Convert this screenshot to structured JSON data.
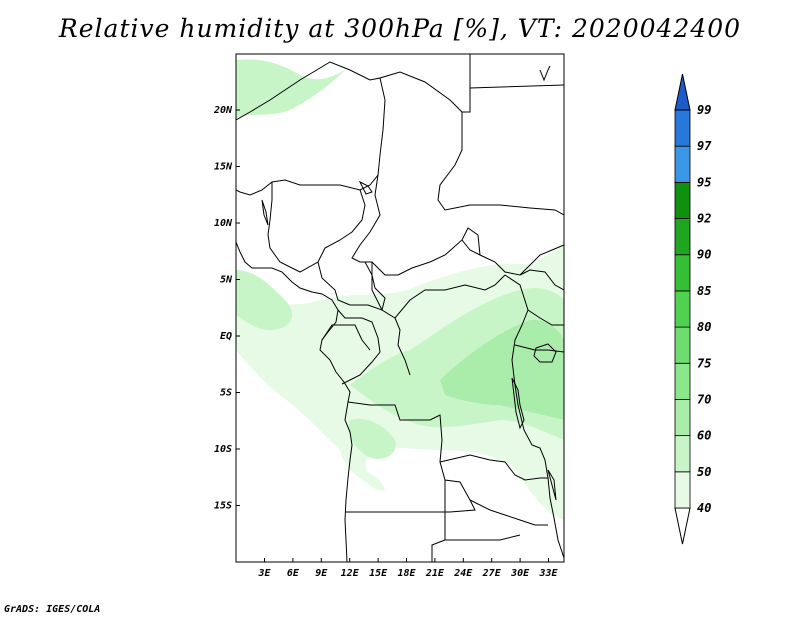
{
  "title": "Relative humidity at 300hPa [%], VT: 2020042400",
  "credit": "GrADS: IGES/COLA",
  "map": {
    "variable": "Relative humidity",
    "level": "300hPa",
    "units": "%",
    "valid_time": "2020042400",
    "lon_range": [
      0,
      34.5
    ],
    "lat_range": [
      -19.5,
      24.5
    ],
    "lat_ticks": [
      "20N",
      "15N",
      "10N",
      "5N",
      "EQ",
      "5S",
      "10S",
      "15S"
    ],
    "lon_ticks": [
      "3E",
      "6E",
      "9E",
      "12E",
      "15E",
      "18E",
      "21E",
      "24E",
      "27E",
      "30E",
      "33E"
    ]
  },
  "colorbar": {
    "labels": [
      "40",
      "50",
      "60",
      "70",
      "75",
      "80",
      "85",
      "90",
      "92",
      "95",
      "97",
      "99"
    ],
    "colors": [
      "#ffffff",
      "#e6fae6",
      "#c8f5c8",
      "#aaedaa",
      "#8ce68c",
      "#6edc6e",
      "#50d250",
      "#37be37",
      "#1fa51f",
      "#0f910f",
      "#3c96e6",
      "#2878dc",
      "#1e5ac8"
    ]
  }
}
